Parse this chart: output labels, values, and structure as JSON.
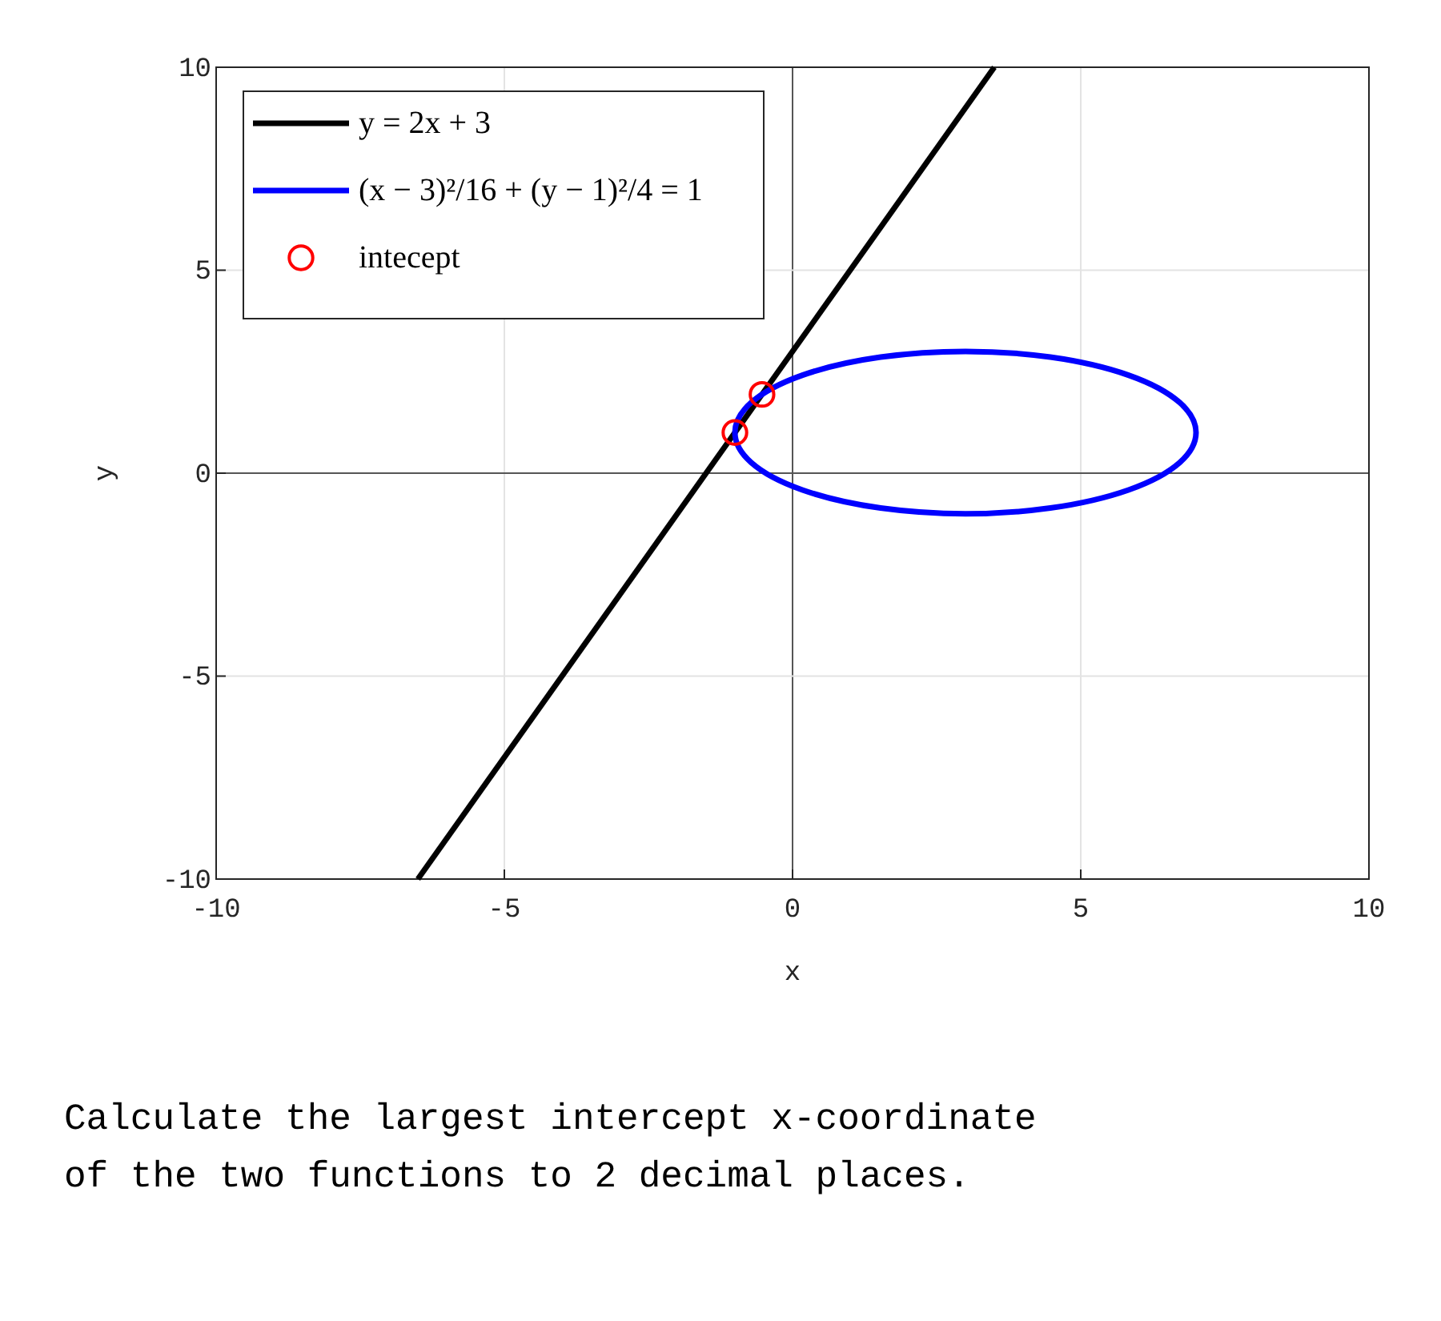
{
  "chart_data": {
    "type": "line",
    "xlabel": "x",
    "ylabel": "y",
    "xlim": [
      -10,
      10
    ],
    "ylim": [
      -10,
      10
    ],
    "xticks": [
      -10,
      -5,
      0,
      5,
      10
    ],
    "yticks": [
      -10,
      -5,
      0,
      5,
      10
    ],
    "grid": true,
    "legend": "top left",
    "series": [
      {
        "name": "y = 2x + 3",
        "color": "#000000",
        "x": [
          -6.5,
          3.5
        ],
        "values": [
          -10,
          10
        ]
      },
      {
        "name": "(x − 3)²/16 + (y − 1)²/4 = 1",
        "type": "other",
        "color": "#0000ff"
      },
      {
        "name": "intecept",
        "type": "scatter",
        "marker": "circle",
        "color": "#ff0000",
        "x": [
          -1,
          -0.53
        ],
        "values": [
          1,
          1.94
        ]
      }
    ],
    "annotations": [
      "Calculate the largest intercept x-coordinate\nof the two functions to 2 decimal places."
    ]
  }
}
